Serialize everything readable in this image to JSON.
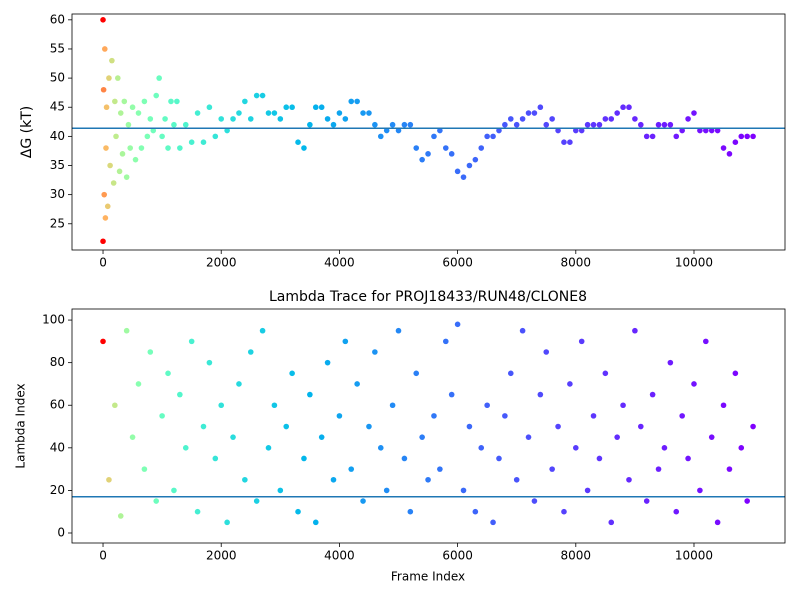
{
  "chart_data": [
    {
      "type": "scatter",
      "ylabel": "ΔG (kT)",
      "colormap": "rainbow_r",
      "x": [
        0,
        0,
        10,
        20,
        30,
        40,
        50,
        60,
        80,
        100,
        120,
        150,
        180,
        200,
        220,
        250,
        280,
        300,
        330,
        360,
        400,
        430,
        460,
        500,
        550,
        600,
        650,
        700,
        750,
        800,
        850,
        900,
        950,
        1000,
        1050,
        1100,
        1150,
        1200,
        1250,
        1300,
        1400,
        1500,
        1600,
        1700,
        1800,
        1900,
        2000,
        2100,
        2200,
        2300,
        2400,
        2500,
        2600,
        2700,
        2800,
        2900,
        3000,
        3100,
        3200,
        3300,
        3400,
        3500,
        3600,
        3700,
        3800,
        3900,
        4000,
        4100,
        4200,
        4300,
        4400,
        4500,
        4600,
        4700,
        4800,
        4900,
        5000,
        5100,
        5200,
        5300,
        5400,
        5500,
        5600,
        5700,
        5800,
        5900,
        6000,
        6100,
        6200,
        6300,
        6400,
        6500,
        6600,
        6700,
        6800,
        6900,
        7000,
        7100,
        7200,
        7300,
        7400,
        7500,
        7600,
        7700,
        7800,
        7900,
        8000,
        8100,
        8200,
        8300,
        8400,
        8500,
        8600,
        8700,
        8800,
        8900,
        9000,
        9100,
        9200,
        9300,
        9400,
        9500,
        9600,
        9700,
        9800,
        9900,
        10000,
        10100,
        10200,
        10300,
        10400,
        10500,
        10600,
        10700,
        10800,
        10900,
        11000
      ],
      "values": [
        60,
        22,
        48,
        30,
        55,
        26,
        38,
        45,
        28,
        50,
        35,
        53,
        32,
        46,
        40,
        50,
        34,
        44,
        37,
        46,
        33,
        42,
        38,
        45,
        36,
        44,
        38,
        46,
        40,
        43,
        41,
        47,
        50,
        40,
        43,
        38,
        46,
        42,
        46,
        38,
        42,
        39,
        44,
        39,
        45,
        40,
        43,
        41,
        43,
        44,
        46,
        43,
        47,
        47,
        44,
        44,
        43,
        45,
        45,
        39,
        38,
        42,
        45,
        45,
        43,
        42,
        44,
        43,
        46,
        46,
        44,
        44,
        42,
        40,
        41,
        42,
        41,
        42,
        42,
        38,
        36,
        37,
        40,
        41,
        38,
        37,
        34,
        33,
        35,
        36,
        38,
        40,
        40,
        41,
        42,
        43,
        42,
        43,
        44,
        44,
        45,
        42,
        43,
        41,
        39,
        39,
        41,
        41,
        42,
        42,
        42,
        43,
        43,
        44,
        45,
        45,
        43,
        42,
        40,
        40,
        42,
        42,
        42,
        40,
        41,
        43,
        44,
        41,
        41,
        41,
        41,
        38,
        37,
        39,
        40,
        40,
        40
      ],
      "hline": {
        "value": 41.4,
        "color": "#1f77b4"
      },
      "xlim": [
        -525,
        11540
      ],
      "ylim": [
        20.5,
        61
      ],
      "xticks": [
        0,
        2000,
        4000,
        6000,
        8000,
        10000
      ],
      "yticks": [
        25,
        30,
        35,
        40,
        45,
        50,
        55,
        60
      ]
    },
    {
      "type": "scatter",
      "title": "Lambda Trace for PROJ18433/RUN48/CLONE8",
      "xlabel": "Frame Index",
      "ylabel": "Lambda Index",
      "colormap": "rainbow_r",
      "x": [
        0,
        100,
        200,
        300,
        400,
        500,
        600,
        700,
        800,
        900,
        1000,
        1100,
        1200,
        1300,
        1400,
        1500,
        1600,
        1700,
        1800,
        1900,
        2000,
        2100,
        2200,
        2300,
        2400,
        2500,
        2600,
        2700,
        2800,
        2900,
        3000,
        3100,
        3200,
        3300,
        3400,
        3500,
        3600,
        3700,
        3800,
        3900,
        4000,
        4100,
        4200,
        4300,
        4400,
        4500,
        4600,
        4700,
        4800,
        4900,
        5000,
        5100,
        5200,
        5300,
        5400,
        5500,
        5600,
        5700,
        5800,
        5900,
        6000,
        6100,
        6200,
        6300,
        6400,
        6500,
        6600,
        6700,
        6800,
        6900,
        7000,
        7100,
        7200,
        7300,
        7400,
        7500,
        7600,
        7700,
        7800,
        7900,
        8000,
        8100,
        8200,
        8300,
        8400,
        8500,
        8600,
        8700,
        8800,
        8900,
        9000,
        9100,
        9200,
        9300,
        9400,
        9500,
        9600,
        9700,
        9800,
        9900,
        10000,
        10100,
        10200,
        10300,
        10400,
        10500,
        10600,
        10700,
        10800,
        10900,
        11000
      ],
      "values": [
        90,
        25,
        60,
        8,
        95,
        45,
        70,
        30,
        85,
        15,
        55,
        75,
        20,
        65,
        40,
        90,
        10,
        50,
        80,
        35,
        60,
        5,
        45,
        70,
        25,
        85,
        15,
        95,
        40,
        60,
        20,
        50,
        75,
        10,
        35,
        65,
        5,
        45,
        80,
        25,
        55,
        90,
        30,
        70,
        15,
        50,
        85,
        40,
        20,
        60,
        95,
        35,
        10,
        75,
        45,
        25,
        55,
        30,
        90,
        65,
        98,
        20,
        50,
        10,
        40,
        60,
        5,
        35,
        55,
        75,
        25,
        95,
        45,
        15,
        65,
        85,
        30,
        50,
        10,
        70,
        40,
        90,
        20,
        55,
        35,
        75,
        5,
        45,
        60,
        25,
        95,
        50,
        15,
        65,
        30,
        40,
        80,
        10,
        55,
        35,
        70,
        20,
        90,
        45,
        5,
        60,
        30,
        75,
        40,
        15,
        50
      ],
      "hline": {
        "value": 17,
        "color": "#1f77b4"
      },
      "xlim": [
        -525,
        11540
      ],
      "ylim": [
        -4.7,
        105.2
      ],
      "xticks": [
        0,
        2000,
        4000,
        6000,
        8000,
        10000
      ],
      "yticks": [
        0,
        20,
        40,
        60,
        80,
        100
      ]
    }
  ]
}
